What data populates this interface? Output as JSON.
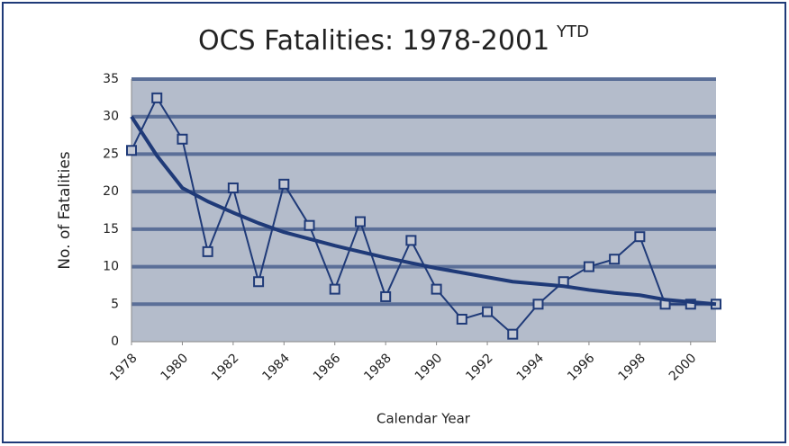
{
  "chart_data": {
    "type": "line",
    "title": "OCS Fatalities: 1978-2001",
    "title_superscript": "YTD",
    "x_label": "Calendar Year",
    "y_label": "No. of Fatalities",
    "x": [
      1978,
      1979,
      1980,
      1981,
      1982,
      1983,
      1984,
      1985,
      1986,
      1987,
      1988,
      1989,
      1990,
      1991,
      1992,
      1993,
      1994,
      1995,
      1996,
      1997,
      1998,
      1999,
      2000,
      2001
    ],
    "series": [
      {
        "color": "#1f3a78",
        "markers": true,
        "width": 2,
        "values": [
          25.5,
          32.5,
          27,
          12,
          20.5,
          8,
          21,
          15.5,
          7,
          16,
          6,
          13.5,
          7,
          3,
          4,
          1,
          5,
          8,
          10,
          11,
          14,
          5,
          5,
          5
        ]
      },
      {
        "color": "#1f3a78",
        "markers": false,
        "width": 4,
        "values": [
          30,
          24.8,
          20.5,
          18.7,
          17.2,
          15.8,
          14.6,
          13.7,
          12.8,
          12,
          11.2,
          10.5,
          9.8,
          9.2,
          8.6,
          8,
          7.7,
          7.4,
          6.9,
          6.5,
          6.2,
          5.6,
          5.3,
          5
        ]
      }
    ],
    "xlim": [
      1978,
      2001
    ],
    "xticks": [
      1978,
      1980,
      1982,
      1984,
      1986,
      1988,
      1990,
      1992,
      1994,
      1996,
      1998,
      2000
    ],
    "ylim": [
      0,
      35
    ],
    "yticks": [
      0,
      5,
      10,
      15,
      20,
      25,
      30,
      35
    ],
    "grid": true,
    "marker_fill": "#c3c8d4",
    "plot_background": "#b4bccb",
    "grid_color": "#5b6f98"
  }
}
